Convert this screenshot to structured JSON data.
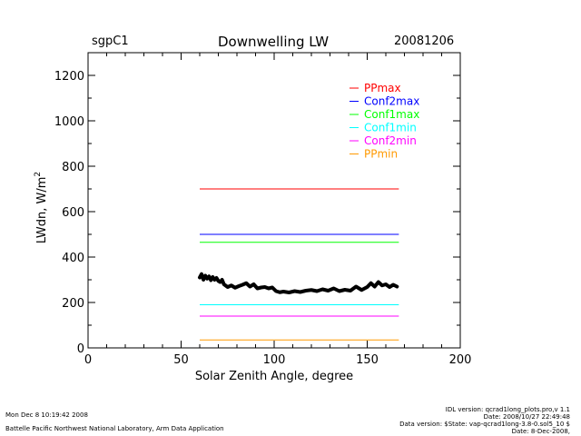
{
  "header": {
    "site": "sgpC1",
    "title": "Downwelling LW",
    "date": "20081206"
  },
  "chart_data": {
    "type": "line",
    "title": "Downwelling LW",
    "xlabel": "Solar Zenith Angle, degree",
    "ylabel": "LWdn, W/m",
    "ylabel_superscript": "2",
    "xlim": [
      0,
      200
    ],
    "ylim": [
      0,
      1300
    ],
    "xticks": [
      0,
      50,
      100,
      150,
      200
    ],
    "yticks": [
      0,
      200,
      400,
      600,
      800,
      1000,
      1200
    ],
    "grid": false,
    "legend_position": "top-right",
    "series": [
      {
        "name": "PPmax",
        "color": "#ff0000",
        "x": [
          60,
          167
        ],
        "y": [
          700,
          700
        ]
      },
      {
        "name": "Conf2max",
        "color": "#0000ff",
        "x": [
          60,
          167
        ],
        "y": [
          500,
          500
        ]
      },
      {
        "name": "Conf1max",
        "color": "#00ff00",
        "x": [
          60,
          167
        ],
        "y": [
          465,
          465
        ]
      },
      {
        "name": "Conf1min",
        "color": "#00ffff",
        "x": [
          60,
          167
        ],
        "y": [
          190,
          190
        ]
      },
      {
        "name": "Conf2min",
        "color": "#ff00ff",
        "x": [
          60,
          167
        ],
        "y": [
          140,
          140
        ]
      },
      {
        "name": "PPmin",
        "color": "#ff9900",
        "x": [
          60,
          167
        ],
        "y": [
          35,
          35
        ]
      }
    ],
    "observed": {
      "color": "#000000",
      "x": [
        60,
        61,
        62,
        63,
        64,
        65,
        66,
        67,
        68,
        69,
        70,
        71,
        72,
        73,
        75,
        77,
        79,
        81,
        83,
        85,
        87,
        89,
        91,
        93,
        95,
        97,
        99,
        101,
        103,
        105,
        108,
        111,
        114,
        117,
        120,
        123,
        126,
        129,
        132,
        135,
        138,
        141,
        144,
        147,
        150,
        152,
        154,
        156,
        158,
        160,
        162,
        164,
        166
      ],
      "y": [
        310,
        325,
        300,
        318,
        305,
        315,
        298,
        312,
        300,
        308,
        295,
        290,
        300,
        280,
        268,
        275,
        265,
        272,
        278,
        285,
        270,
        280,
        262,
        266,
        268,
        262,
        266,
        250,
        245,
        248,
        244,
        250,
        246,
        252,
        255,
        250,
        258,
        252,
        262,
        250,
        256,
        252,
        270,
        255,
        268,
        285,
        270,
        290,
        275,
        280,
        268,
        278,
        270
      ]
    }
  },
  "footer": {
    "left_line1": "Mon Dec  8 10:19:42 2008",
    "left_line2": "Battelle Pacific Northwest National Laboratory, Arm Data Application",
    "right_line1": "IDL version: qcrad1long_plots.pro,v 1.1",
    "right_line2": "Date: 2008/10/27 22:49:48",
    "right_line3": "Data version: $State: vap-qcrad1long-3.8-0.sol5_10 $",
    "right_line4": "Date: 8-Dec-2008,"
  }
}
